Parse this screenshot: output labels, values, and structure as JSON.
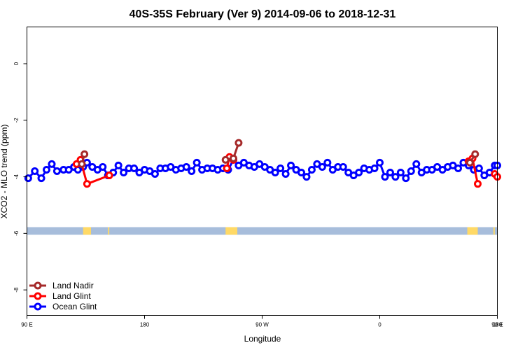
{
  "chart_data": {
    "type": "line",
    "title": "40S-35S February (Ver 9)   2014-09-06 to 2018-12-31",
    "xlabel": "Longitude",
    "ylabel": "XCO2 - MLO trend (ppm)",
    "xlim": [
      90,
      450
    ],
    "ylim": [
      -8.9,
      1.3
    ],
    "x_ticks": [
      {
        "value": 90,
        "label": "90 E"
      },
      {
        "value": 180,
        "label": "180"
      },
      {
        "value": 270,
        "label": "90 W"
      },
      {
        "value": 360,
        "label": "0"
      },
      {
        "value": 450,
        "label": "90 E"
      },
      {
        "value": 540,
        "label": "180"
      }
    ],
    "y_ticks": [
      {
        "value": 0,
        "label": "0"
      },
      {
        "value": -2,
        "label": "-2"
      },
      {
        "value": -4,
        "label": "-4"
      },
      {
        "value": -6,
        "label": "-6"
      },
      {
        "value": -8,
        "label": "-8"
      }
    ],
    "land_band": {
      "y_top": -5.78,
      "y_bottom": -6.05,
      "ocean_color": "#a7bddb",
      "land_color": "#ffd966"
    },
    "land_patches": [
      {
        "x1": 133,
        "x2": 139
      },
      {
        "x1": 152,
        "x2": 153
      },
      {
        "x1": 242,
        "x2": 251
      },
      {
        "x1": 427,
        "x2": 435
      },
      {
        "x1": 447,
        "x2": 448
      }
    ],
    "legend_position": "bottom-left",
    "series": [
      {
        "name": "Land Nadir",
        "color": "#a52a2a",
        "segments": [
          [
            {
              "x": 132,
              "y": -3.55
            },
            {
              "x": 134,
              "y": -3.2
            }
          ],
          [
            {
              "x": 242,
              "y": -3.4
            },
            {
              "x": 248,
              "y": -3.35
            },
            {
              "x": 252,
              "y": -2.8
            }
          ],
          [
            {
              "x": 429,
              "y": -3.5
            },
            {
              "x": 433,
              "y": -3.2
            }
          ]
        ]
      },
      {
        "name": "Land Glint",
        "color": "#ff0000",
        "segments": [
          [
            {
              "x": 128,
              "y": -3.55
            },
            {
              "x": 131,
              "y": -3.4
            },
            {
              "x": 136,
              "y": -4.25
            },
            {
              "x": 153,
              "y": -3.95
            }
          ],
          [
            {
              "x": 243,
              "y": -3.7
            },
            {
              "x": 245,
              "y": -3.3
            },
            {
              "x": 248,
              "y": -3.4
            }
          ],
          [
            {
              "x": 428,
              "y": -3.45
            },
            {
              "x": 431,
              "y": -3.35
            },
            {
              "x": 435,
              "y": -4.25
            }
          ],
          [
            {
              "x": 448,
              "y": -3.9
            },
            {
              "x": 450,
              "y": -4.0
            }
          ]
        ]
      },
      {
        "name": "Ocean Glint",
        "color": "#0000ff",
        "x": [
          91,
          96,
          101,
          105,
          109,
          113,
          118,
          122,
          126,
          129,
          133,
          136,
          140,
          144,
          148,
          152,
          156,
          160,
          164,
          168,
          172,
          176,
          180,
          184,
          188,
          192,
          196,
          200,
          204,
          208,
          212,
          216,
          220,
          224,
          228,
          232,
          236,
          240,
          244,
          248,
          252,
          256,
          260,
          264,
          268,
          272,
          276,
          280,
          284,
          288,
          292,
          296,
          300,
          304,
          308,
          312,
          316,
          320,
          324,
          328,
          332,
          336,
          340,
          344,
          348,
          352,
          356,
          360,
          364,
          368,
          372,
          376,
          380,
          384,
          388,
          392,
          396,
          400,
          404,
          408,
          412,
          416,
          420,
          424,
          428,
          432,
          436,
          440,
          444,
          448,
          450
        ],
        "y": [
          -4.05,
          -3.8,
          -4.05,
          -3.75,
          -3.55,
          -3.8,
          -3.75,
          -3.75,
          -3.65,
          -3.75,
          -3.65,
          -3.5,
          -3.65,
          -3.75,
          -3.65,
          -3.95,
          -3.85,
          -3.6,
          -3.85,
          -3.7,
          -3.7,
          -3.85,
          -3.75,
          -3.8,
          -3.9,
          -3.7,
          -3.7,
          -3.65,
          -3.75,
          -3.7,
          -3.65,
          -3.8,
          -3.5,
          -3.75,
          -3.7,
          -3.7,
          -3.75,
          -3.7,
          -3.75,
          -3.4,
          -3.6,
          -3.5,
          -3.6,
          -3.65,
          -3.55,
          -3.65,
          -3.75,
          -3.85,
          -3.7,
          -3.9,
          -3.6,
          -3.75,
          -3.85,
          -4.0,
          -3.75,
          -3.55,
          -3.65,
          -3.5,
          -3.75,
          -3.65,
          -3.65,
          -3.85,
          -3.95,
          -3.85,
          -3.7,
          -3.75,
          -3.7,
          -3.5,
          -4.0,
          -3.85,
          -4.0,
          -3.85,
          -4.05,
          -3.8,
          -3.55,
          -3.85,
          -3.75,
          -3.75,
          -3.65,
          -3.75,
          -3.65,
          -3.6,
          -3.7,
          -3.5,
          -3.6,
          -3.75,
          -3.7,
          -3.95,
          -3.85,
          -3.6,
          -3.6
        ]
      }
    ]
  }
}
